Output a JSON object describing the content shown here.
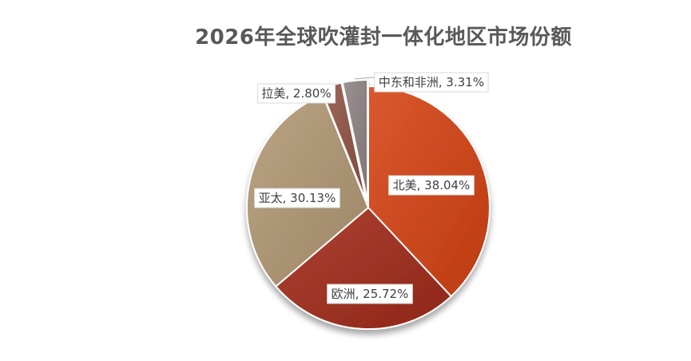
{
  "chart_data": {
    "type": "pie",
    "title": "2026年全球吹灌封一体化地区市场份额",
    "slices": [
      {
        "name": "北美",
        "value": 38.04,
        "label": "北美, 38.04%",
        "color": "#c8461c"
      },
      {
        "name": "欧洲",
        "value": 25.72,
        "label": "欧洲, 25.72%",
        "color": "#9a3122"
      },
      {
        "name": "亚太",
        "value": 30.13,
        "label": "亚太, 30.13%",
        "color": "#a89272"
      },
      {
        "name": "拉美",
        "value": 2.8,
        "label": "拉美, 2.80%",
        "color": "#8b5548"
      },
      {
        "name": "中东和非洲",
        "value": 3.31,
        "label": "中东和非洲, 3.31%",
        "color": "#8a7f80"
      }
    ],
    "legend": "none"
  }
}
